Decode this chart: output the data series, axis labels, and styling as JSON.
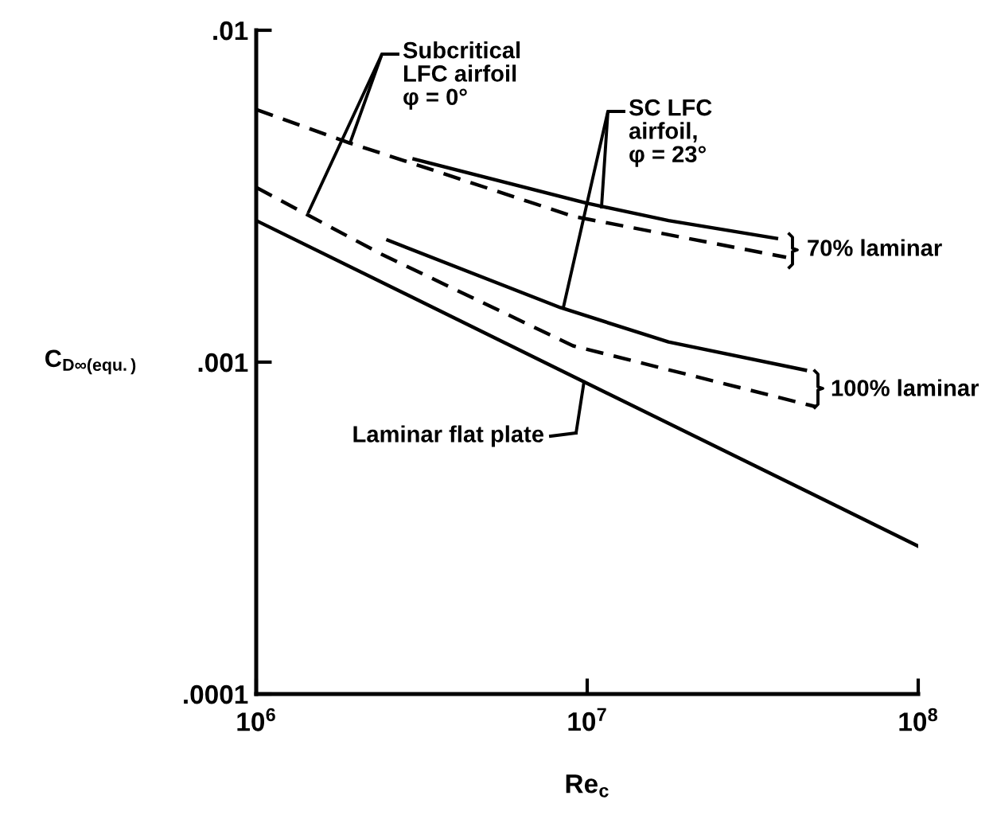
{
  "chart_data": {
    "type": "line",
    "xlabel": "Re$_{c}$",
    "ylabel": "C$_{D∞(equ.)}$",
    "log": "xy",
    "xlim": [
      1000000,
      100000000
    ],
    "xticks": [
      {
        "value": 1000000,
        "label": "10$^{6}$"
      },
      {
        "value": 10000000,
        "label": "10$^{7}$"
      },
      {
        "value": 100000000,
        "label": "10$^{8}$"
      }
    ],
    "ylim": [
      0.0001,
      0.01
    ],
    "yticks": [
      {
        "value": 0.0001,
        "label": ".0001"
      },
      {
        "value": 0.001,
        "label": ".001"
      },
      {
        "value": 0.01,
        "label": ".01"
      }
    ],
    "grid": false,
    "marker": "none",
    "series": [
      {
        "color": "#000000",
        "line_style": "dashed",
        "x": [
          1000000,
          1920000,
          2990000,
          9060000,
          39900000
        ],
        "values": [
          0.00577,
          0.00457,
          0.00396,
          0.00275,
          0.00207
        ]
      },
      {
        "color": "#000000",
        "line_style": "solid",
        "x": [
          3000000,
          10000000,
          17600000,
          37300000
        ],
        "values": [
          0.00409,
          0.00301,
          0.00267,
          0.00236
        ]
      },
      {
        "color": "#000000",
        "line_style": "dashed",
        "x": [
          1000000,
          2400000,
          9060000,
          48800000
        ],
        "values": [
          0.00336,
          0.00211,
          0.00112,
          0.000735
        ]
      },
      {
        "color": "#000000",
        "line_style": "solid",
        "x": [
          2500000,
          8300000,
          17600000,
          45600000
        ],
        "values": [
          0.00233,
          0.00146,
          0.00115,
          0.000946
        ]
      },
      {
        "color": "#000000",
        "line_style": "solid",
        "x": [
          1000000,
          100000000
        ],
        "values": [
          0.00267,
          0.000279
        ]
      }
    ],
    "annotations": [
      {
        "text": "Subcritical\nLFC airfoil\nφ = 0°",
        "x": 1920000,
        "y": 0.00457
      },
      {
        "text": "SC LFC\nairfoil,\nφ = 23°",
        "x": 8470000,
        "y": 0.00146
      },
      "70% laminar",
      "100% laminar",
      {
        "text": "Laminar flat plate",
        "x": 9780000,
        "y": 0.000873
      }
    ]
  }
}
